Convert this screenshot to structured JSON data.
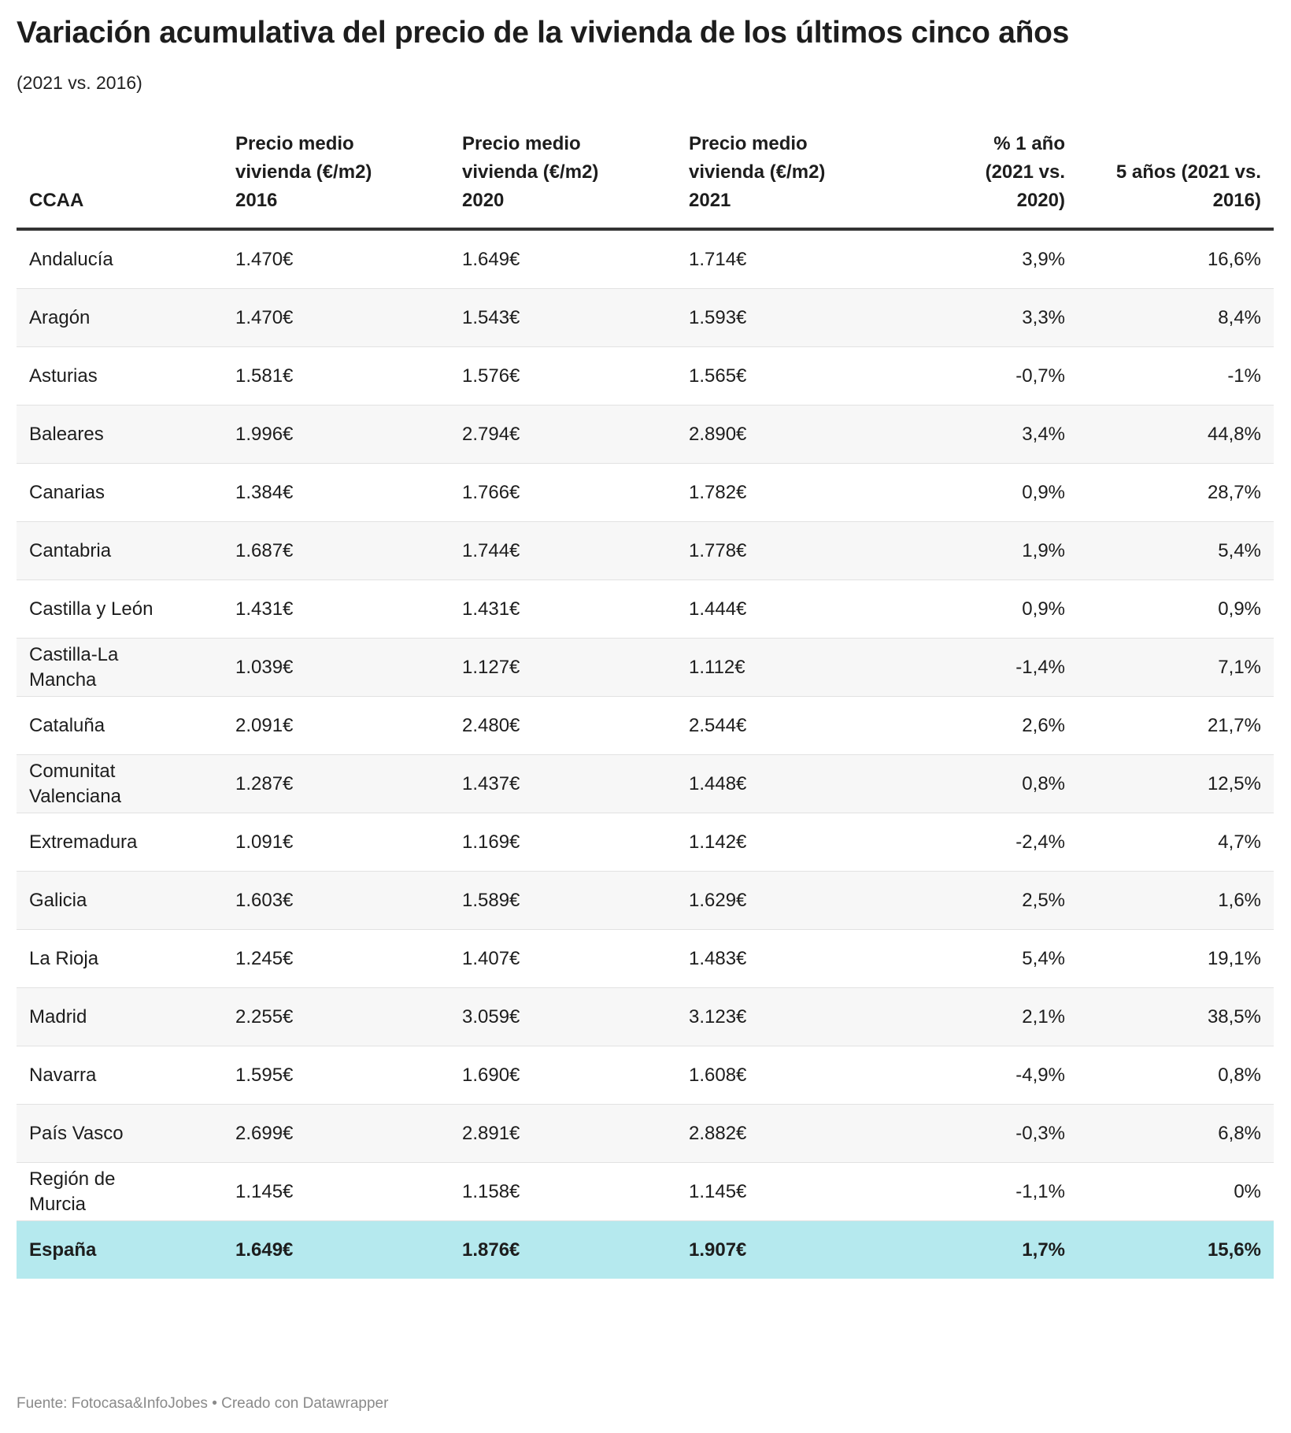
{
  "header": {
    "title": "Variación acumulativa del precio de la vivienda de los últimos cinco años",
    "subtitle": "(2021 vs. 2016)"
  },
  "table": {
    "columns": [
      "CCAA",
      "Precio medio vivienda (€/m2) 2016",
      "Precio medio vivienda (€/m2) 2020",
      "Precio medio vivienda (€/m2) 2021",
      "% 1 año (2021 vs. 2020)",
      "5 años (2021 vs. 2016)"
    ],
    "rows": [
      [
        "Andalucía",
        "1.470€",
        "1.649€",
        "1.714€",
        "3,9%",
        "16,6%"
      ],
      [
        "Aragón",
        "1.470€",
        "1.543€",
        "1.593€",
        "3,3%",
        "8,4%"
      ],
      [
        "Asturias",
        "1.581€",
        "1.576€",
        "1.565€",
        "-0,7%",
        "-1%"
      ],
      [
        "Baleares",
        "1.996€",
        "2.794€",
        "2.890€",
        "3,4%",
        "44,8%"
      ],
      [
        "Canarias",
        "1.384€",
        "1.766€",
        "1.782€",
        "0,9%",
        "28,7%"
      ],
      [
        "Cantabria",
        "1.687€",
        "1.744€",
        "1.778€",
        "1,9%",
        "5,4%"
      ],
      [
        "Castilla y León",
        "1.431€",
        "1.431€",
        "1.444€",
        "0,9%",
        "0,9%"
      ],
      [
        "Castilla-La Mancha",
        "1.039€",
        "1.127€",
        "1.112€",
        "-1,4%",
        "7,1%"
      ],
      [
        "Cataluña",
        "2.091€",
        "2.480€",
        "2.544€",
        "2,6%",
        "21,7%"
      ],
      [
        "Comunitat Valenciana",
        "1.287€",
        "1.437€",
        "1.448€",
        "0,8%",
        "12,5%"
      ],
      [
        "Extremadura",
        "1.091€",
        "1.169€",
        "1.142€",
        "-2,4%",
        "4,7%"
      ],
      [
        "Galicia",
        "1.603€",
        "1.589€",
        "1.629€",
        "2,5%",
        "1,6%"
      ],
      [
        "La Rioja",
        "1.245€",
        "1.407€",
        "1.483€",
        "5,4%",
        "19,1%"
      ],
      [
        "Madrid",
        "2.255€",
        "3.059€",
        "3.123€",
        "2,1%",
        "38,5%"
      ],
      [
        "Navarra",
        "1.595€",
        "1.690€",
        "1.608€",
        "-4,9%",
        "0,8%"
      ],
      [
        "País Vasco",
        "2.699€",
        "2.891€",
        "2.882€",
        "-0,3%",
        "6,8%"
      ],
      [
        "Región de Murcia",
        "1.145€",
        "1.158€",
        "1.145€",
        "-1,1%",
        "0%"
      ],
      [
        "España",
        "1.649€",
        "1.876€",
        "1.907€",
        "1,7%",
        "15,6%"
      ]
    ]
  },
  "footer": "Fuente: Fotocasa&InfoJobes • Creado con Datawrapper"
}
